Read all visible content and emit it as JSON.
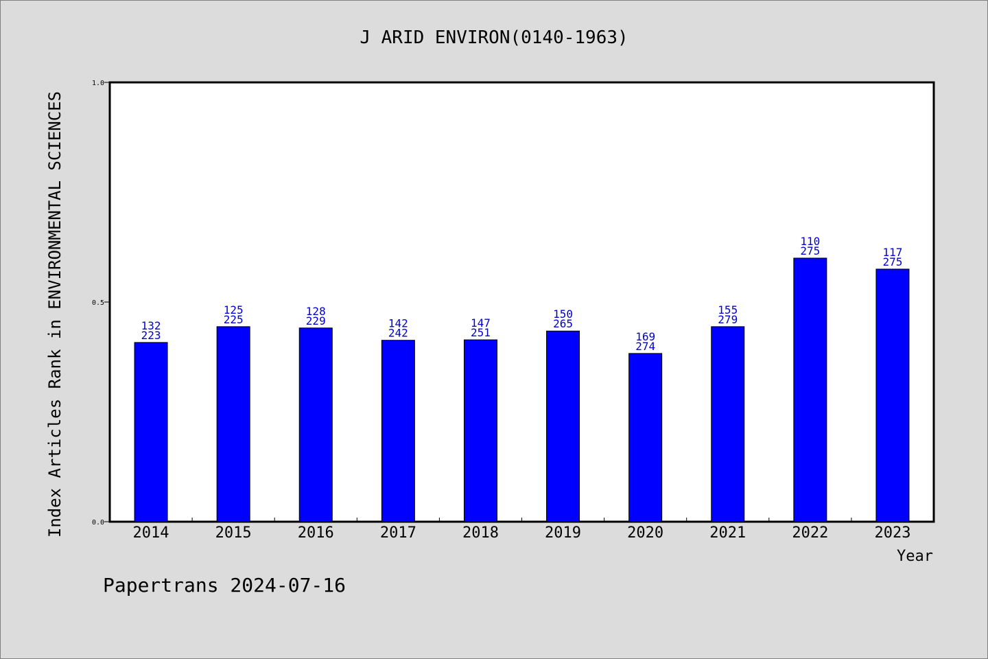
{
  "chart_data": {
    "type": "bar",
    "title": "J ARID ENVIRON(0140-1963)",
    "xlabel": "Year",
    "ylabel": "Index Articles Rank in ENVIRONMENTAL SCIENCES",
    "ylim": [
      0.0,
      1.0
    ],
    "yticks": [
      {
        "value": 0.0,
        "label": "0.0"
      },
      {
        "value": 0.5,
        "label": "0.5"
      },
      {
        "value": 1.0,
        "label": "1.0"
      }
    ],
    "categories": [
      "2014",
      "2015",
      "2016",
      "2017",
      "2018",
      "2019",
      "2020",
      "2021",
      "2022",
      "2023"
    ],
    "values": [
      0.408,
      0.444,
      0.441,
      0.413,
      0.414,
      0.434,
      0.383,
      0.444,
      0.6,
      0.575
    ],
    "rank_labels": [
      {
        "rank": "132",
        "total": "223"
      },
      {
        "rank": "125",
        "total": "225"
      },
      {
        "rank": "128",
        "total": "229"
      },
      {
        "rank": "142",
        "total": "242"
      },
      {
        "rank": "147",
        "total": "251"
      },
      {
        "rank": "150",
        "total": "265"
      },
      {
        "rank": "169",
        "total": "274"
      },
      {
        "rank": "155",
        "total": "279"
      },
      {
        "rank": "110",
        "total": "275"
      },
      {
        "rank": "117",
        "total": "275"
      }
    ],
    "bar_color": "#0000ff",
    "label_color": "#0000cc",
    "grid": false
  },
  "footer": "Papertrans 2024-07-16",
  "colors": {
    "background": "#dcdcdc",
    "plot_background": "#ffffff"
  }
}
